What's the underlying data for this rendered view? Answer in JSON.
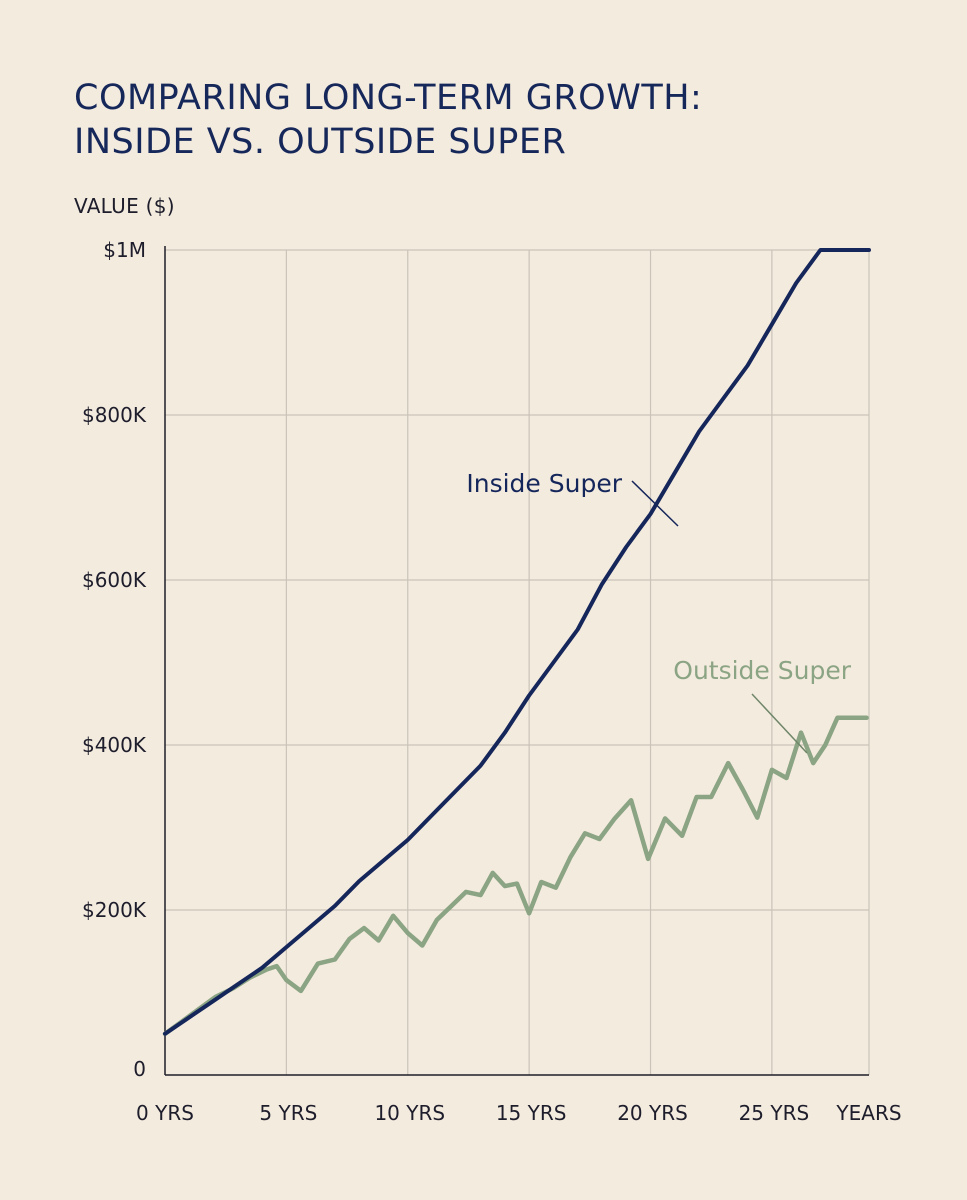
{
  "chart_data": {
    "type": "line",
    "title": "COMPARING LONG-TERM GROWTH:",
    "subtitle": "INSIDE VS. OUTSIDE SUPER",
    "ylabel": "VALUE ($)",
    "xlabel": "YEARS",
    "xlim": [
      0,
      29
    ],
    "ylim": [
      0,
      1000000
    ],
    "grid": true,
    "x_ticks": [
      {
        "value": 0,
        "label": "0 YRS"
      },
      {
        "value": 5,
        "label": "5 YRS"
      },
      {
        "value": 10,
        "label": "10 YRS"
      },
      {
        "value": 15,
        "label": "15 YRS"
      },
      {
        "value": 20,
        "label": "20 YRS"
      },
      {
        "value": 25,
        "label": "25 YRS"
      }
    ],
    "y_ticks": [
      {
        "value": 0,
        "label": "0"
      },
      {
        "value": 200000,
        "label": "$200K"
      },
      {
        "value": 400000,
        "label": "$400K"
      },
      {
        "value": 600000,
        "label": "$600K"
      },
      {
        "value": 800000,
        "label": "$800K"
      },
      {
        "value": 1000000,
        "label": "$1M"
      }
    ],
    "series": [
      {
        "name": "Inside Super",
        "color": "#15265a",
        "x": [
          0,
          1,
          2,
          3,
          4,
          5,
          6,
          7,
          8,
          9,
          10,
          11,
          12,
          13,
          14,
          15,
          16,
          17,
          18,
          19,
          20,
          21,
          22,
          23,
          24,
          25,
          26,
          27,
          28,
          29
        ],
        "values": [
          50000,
          70000,
          90000,
          110000,
          130000,
          155000,
          180000,
          205000,
          235000,
          260000,
          285000,
          315000,
          345000,
          375000,
          415000,
          460000,
          500000,
          540000,
          595000,
          640000,
          680000,
          730000,
          780000,
          820000,
          860000,
          910000,
          960000,
          1000000,
          1000000,
          1000000
        ]
      },
      {
        "name": "Outside Super",
        "color": "#8ba483",
        "x": [
          0,
          0.7,
          1.4,
          2.1,
          2.8,
          3.5,
          4.2,
          4.6,
          5.0,
          5.6,
          6.3,
          7.0,
          7.6,
          8.2,
          8.8,
          9.4,
          10.0,
          10.6,
          11.2,
          11.8,
          12.4,
          13.0,
          13.5,
          14.0,
          14.5,
          15.0,
          15.5,
          16.1,
          16.7,
          17.3,
          17.9,
          18.5,
          19.2,
          19.9,
          20.6,
          21.3,
          21.9,
          22.5,
          23.2,
          23.8,
          24.4,
          25.0,
          25.6,
          26.2,
          26.7,
          27.2,
          27.7,
          28.2,
          28.9
        ],
        "values": [
          50000,
          65000,
          80000,
          95000,
          105000,
          118000,
          128000,
          132000,
          115000,
          102000,
          135000,
          140000,
          165000,
          178000,
          163000,
          193000,
          172000,
          157000,
          188000,
          205000,
          222000,
          218000,
          245000,
          229000,
          232000,
          196000,
          234000,
          227000,
          264000,
          293000,
          286000,
          310000,
          333000,
          262000,
          311000,
          290000,
          337000,
          337000,
          378000,
          346000,
          312000,
          370000,
          360000,
          415000,
          378000,
          400000,
          433000,
          433000,
          433000
        ]
      }
    ],
    "annotations": [
      {
        "text": "Inside Super",
        "series": "Inside Super"
      },
      {
        "text": "Outside Super",
        "series": "Outside Super"
      }
    ]
  }
}
